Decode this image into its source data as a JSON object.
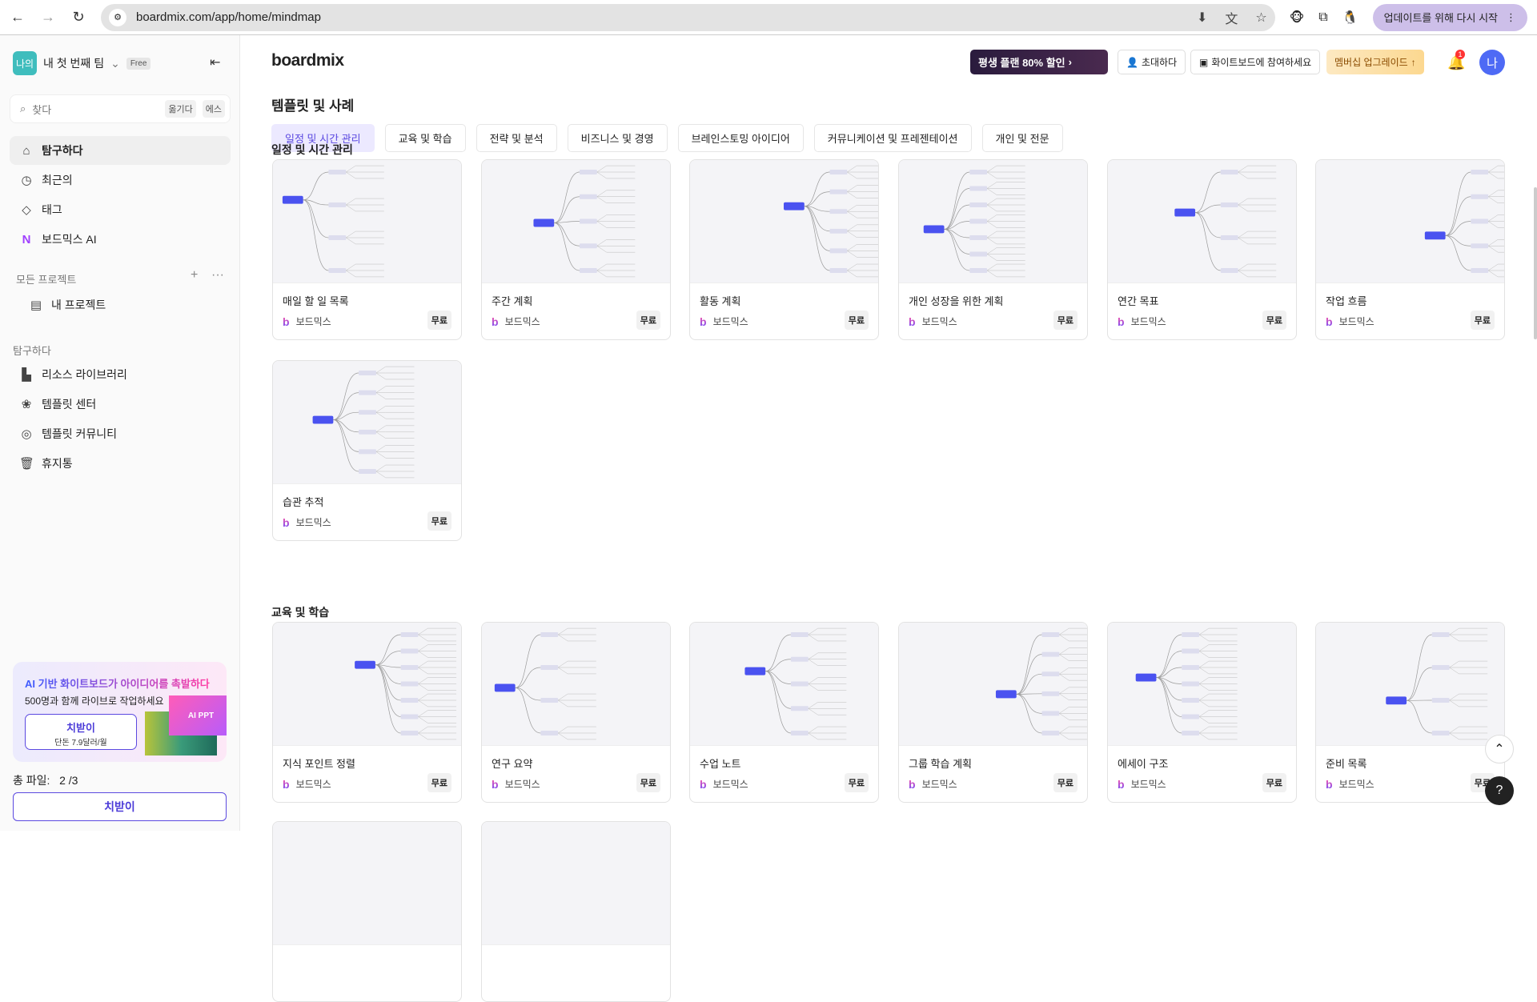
{
  "browser": {
    "url": "boardmix.com/app/home/mindmap",
    "update_label": "업데이트를 위해 다시 시작"
  },
  "sidebar": {
    "team_avatar": "나의",
    "team_name": "내 첫 번째 팀",
    "plan_badge": "Free",
    "search_placeholder": "찾다",
    "search_shortcut_1": "옮기다",
    "search_shortcut_2": "에스",
    "nav": [
      {
        "label": "탐구하다",
        "icon": "home-icon"
      },
      {
        "label": "최근의",
        "icon": "clock-icon"
      },
      {
        "label": "태그",
        "icon": "tag-icon"
      },
      {
        "label": "보드믹스 AI",
        "icon": "boardmix-ai-icon"
      }
    ],
    "projects_label": "모든 프로젝트",
    "project_item": "내 프로젝트",
    "explore_label": "탐구하다",
    "explore": [
      {
        "label": "리소스 라이브러리",
        "icon": "library-icon"
      },
      {
        "label": "템플릿 센터",
        "icon": "template-center-icon"
      },
      {
        "label": "템플릿 커뮤니티",
        "icon": "planet-icon"
      },
      {
        "label": "휴지통",
        "icon": "trash-icon"
      }
    ],
    "promo": {
      "headline": "AI 기반 화이트보드가 아이디어를 촉발하다",
      "sub": "500명과 함께 라이브로 작업하세요",
      "button": "치받이",
      "price": "단돈 7.9달러/월",
      "image_label": "AI PPT"
    },
    "total_files_label": "총 파일:",
    "total_files_value": "2 /3",
    "upgrade_button": "치받이"
  },
  "header": {
    "logo": "boardmix",
    "deal": "평생 플랜 80% 할인",
    "invite": "초대하다",
    "join": "화이트보드에 참여하세요",
    "upgrade": "멤버십 업그레이드",
    "notifications": "1",
    "avatar": "나"
  },
  "main": {
    "title": "템플릿 및 사례",
    "tabs": [
      "일정 및 시간 관리",
      "교육 및 학습",
      "전략 및 분석",
      "비즈니스 및 경영",
      "브레인스토밍 아이디어",
      "커뮤니케이션 및 프레젠테이션",
      "개인 및 전문"
    ],
    "sections": [
      {
        "title": "일정 및 시간 관리",
        "cards": [
          {
            "name": "매일 할 일 목록",
            "author": "보드믹스",
            "price": "무료"
          },
          {
            "name": "주간 계획",
            "author": "보드믹스",
            "price": "무료"
          },
          {
            "name": "활동 계획",
            "author": "보드믹스",
            "price": "무료"
          },
          {
            "name": "개인 성장을 위한 계획",
            "author": "보드믹스",
            "price": "무료"
          },
          {
            "name": "연간 목표",
            "author": "보드믹스",
            "price": "무료"
          },
          {
            "name": "작업 흐름",
            "author": "보드믹스",
            "price": "무료"
          },
          {
            "name": "습관 추적",
            "author": "보드믹스",
            "price": "무료"
          }
        ]
      },
      {
        "title": "교육 및 학습",
        "cards": [
          {
            "name": "지식 포인트 정렬",
            "author": "보드믹스",
            "price": "무료"
          },
          {
            "name": "연구 요약",
            "author": "보드믹스",
            "price": "무료"
          },
          {
            "name": "수업 노트",
            "author": "보드믹스",
            "price": "무료"
          },
          {
            "name": "그룹 학습 계획",
            "author": "보드믹스",
            "price": "무료"
          },
          {
            "name": "에세이 구조",
            "author": "보드믹스",
            "price": "무료"
          },
          {
            "name": "준비 목록",
            "author": "보드믹스",
            "price": "무료"
          }
        ]
      }
    ]
  },
  "colors": {
    "accent": "#5b49e0",
    "active_tab_bg": "#ece9ff",
    "avatar": "#4e6af5"
  }
}
